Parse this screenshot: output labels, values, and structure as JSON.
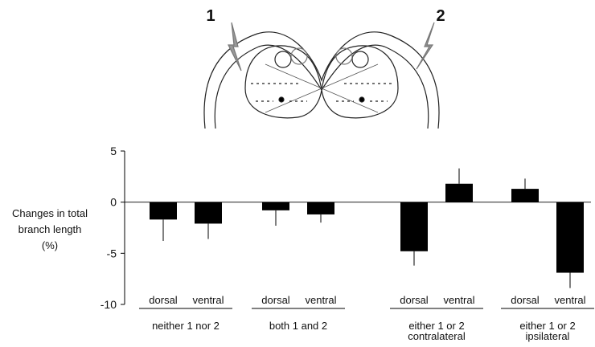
{
  "diagram": {
    "labels": [
      "1",
      "2"
    ]
  },
  "chart_data": {
    "type": "bar",
    "ylabel": [
      "Changes in total",
      "branch length",
      "(%)"
    ],
    "categories": [
      "dorsal",
      "ventral",
      "dorsal",
      "ventral",
      "dorsal",
      "ventral",
      "dorsal",
      "ventral"
    ],
    "groups": [
      [
        "neither 1 nor 2"
      ],
      [
        "both 1 and 2"
      ],
      [
        "either 1 or 2",
        "contralateral"
      ],
      [
        "either 1 or 2",
        "ipsilateral"
      ]
    ],
    "values": [
      -1.7,
      -2.1,
      -0.8,
      -1.2,
      -4.8,
      1.8,
      1.3,
      -6.9
    ],
    "errors": [
      2.1,
      1.5,
      1.5,
      0.8,
      1.4,
      1.5,
      1.0,
      1.5
    ],
    "color": "#000000",
    "ylim": [
      -10,
      5
    ],
    "yticks": [
      -10,
      -5,
      0,
      5
    ]
  }
}
